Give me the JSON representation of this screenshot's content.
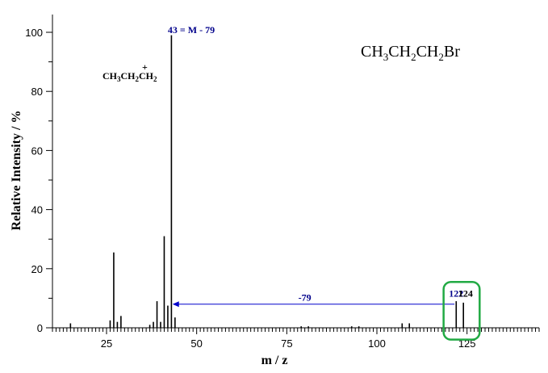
{
  "chart_data": {
    "type": "bar",
    "xlabel": "m / z",
    "ylabel": "Relative Intensity / %",
    "xlim": [
      10,
      145
    ],
    "ylim": [
      0,
      100
    ],
    "xticks": [
      25,
      50,
      75,
      100,
      125
    ],
    "yticks": [
      0,
      20,
      40,
      60,
      80,
      100
    ],
    "peaks": [
      {
        "mz": 15,
        "intensity": 1.5
      },
      {
        "mz": 26,
        "intensity": 2.5
      },
      {
        "mz": 27,
        "intensity": 25.5
      },
      {
        "mz": 28,
        "intensity": 2
      },
      {
        "mz": 29,
        "intensity": 4
      },
      {
        "mz": 37,
        "intensity": 1
      },
      {
        "mz": 38,
        "intensity": 2
      },
      {
        "mz": 39,
        "intensity": 9
      },
      {
        "mz": 40,
        "intensity": 2
      },
      {
        "mz": 41,
        "intensity": 31
      },
      {
        "mz": 42,
        "intensity": 7.5
      },
      {
        "mz": 43,
        "intensity": 99
      },
      {
        "mz": 44,
        "intensity": 3.5
      },
      {
        "mz": 79,
        "intensity": 0.5
      },
      {
        "mz": 81,
        "intensity": 0.5
      },
      {
        "mz": 93,
        "intensity": 0.5
      },
      {
        "mz": 95,
        "intensity": 0.5
      },
      {
        "mz": 107,
        "intensity": 1.5
      },
      {
        "mz": 109,
        "intensity": 1.5
      },
      {
        "mz": 122,
        "intensity": 9
      },
      {
        "mz": 124,
        "intensity": 8.5
      }
    ],
    "bar_color": "#000000",
    "highlight_color": "#22aa44",
    "arrow_color": "#0000cc"
  },
  "annotations": {
    "base_peak": "43 = M - 79",
    "loss_label": "-79",
    "mol_ion_1": "122",
    "mol_ion_2": "124"
  },
  "formula": {
    "main": [
      "CH",
      "3",
      "CH",
      "2",
      "CH",
      "2",
      "Br"
    ],
    "fragment": [
      "CH",
      "3",
      "CH",
      "2",
      "CH",
      "2",
      "+"
    ]
  }
}
